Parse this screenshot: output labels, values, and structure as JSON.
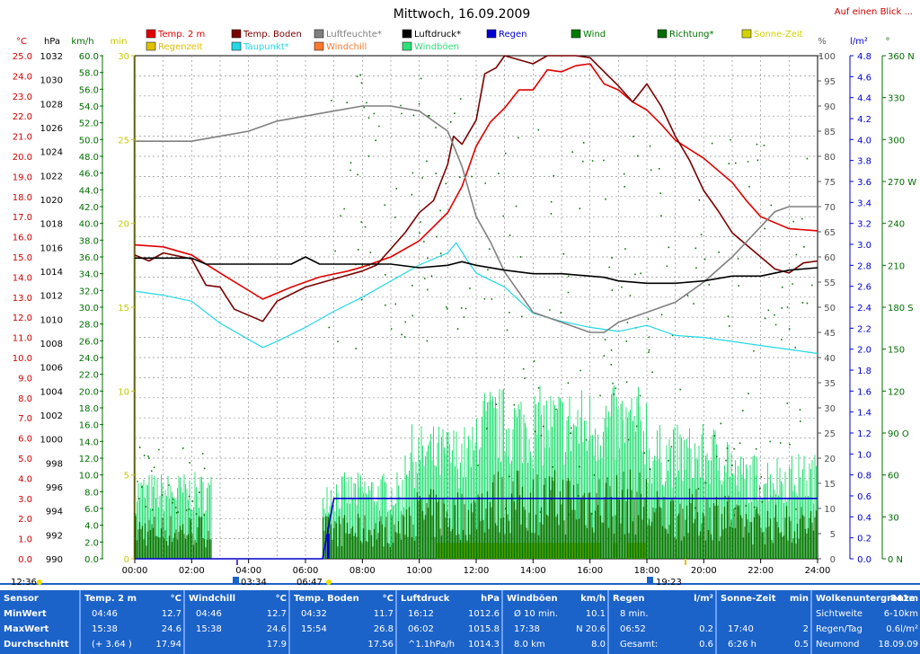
{
  "title": "Mittwoch, 16.09.2009",
  "header_link": "Auf einen Blick ...",
  "colors": {
    "temp": "#e00000",
    "boden": "#7a0000",
    "feuchte": "#808080",
    "druck": "#000000",
    "tau": "#22d8e6",
    "wind": "#007a00",
    "boeen": "#2ee07a",
    "richtung": "#006e00",
    "regen": "#0000d0",
    "sonne": "#d2d200",
    "regenzeit": "#e0c000",
    "windchill": "#ff7a30"
  },
  "legend": [
    {
      "label": "Temp. 2 m",
      "color": "#e00000"
    },
    {
      "label": "Regenzeit",
      "color": "#e0c000"
    },
    {
      "label": "Temp. Boden",
      "color": "#7a0000"
    },
    {
      "label": "Taupunkt*",
      "color": "#22d8e6"
    },
    {
      "label": "Luftfeuchte*",
      "color": "#808080"
    },
    {
      "label": "Windchill",
      "color": "#ff7a30"
    },
    {
      "label": "Luftdruck*",
      "color": "#000000"
    },
    {
      "label": "Windböen",
      "color": "#2ee07a"
    },
    {
      "label": "Regen",
      "color": "#0000d0"
    },
    {
      "label": "Wind",
      "color": "#007a00"
    },
    {
      "label": "Richtung*",
      "color": "#006e00"
    },
    {
      "label": "Sonne-Zeit",
      "color": "#d2d200"
    }
  ],
  "axis_units": {
    "temp": "°C",
    "druck": "hPa",
    "wind": "km/h",
    "sonne": "min",
    "feuchte": "%",
    "regen": "l/m²",
    "richtung": "°"
  },
  "axis_ticks": {
    "temp": [
      "25.0",
      "24.0",
      "23.0",
      "22.0",
      "21.0",
      "20.0",
      "19.0",
      "18.0",
      "17.0",
      "16.0",
      "15.0",
      "14.0",
      "13.0",
      "12.0",
      "11.0",
      "10.0",
      "9.0",
      "8.0",
      "7.0",
      "6.0",
      "5.0",
      "4.0",
      "3.0",
      "2.0",
      "1.0",
      "0.0"
    ],
    "druck": [
      "1032",
      "1030",
      "1028",
      "1026",
      "1024",
      "1022",
      "1020",
      "1018",
      "1016",
      "1014",
      "1012",
      "1010",
      "1008",
      "1006",
      "1004",
      "1002",
      "1000",
      "998",
      "996",
      "994",
      "992",
      "990"
    ],
    "wind": [
      "60.0",
      "58.0",
      "56.0",
      "54.0",
      "52.0",
      "50.0",
      "48.0",
      "46.0",
      "44.0",
      "42.0",
      "40.0",
      "38.0",
      "36.0",
      "34.0",
      "32.0",
      "30.0",
      "28.0",
      "26.0",
      "24.0",
      "22.0",
      "20.0",
      "18.0",
      "16.0",
      "14.0",
      "12.0",
      "10.0",
      "8.0",
      "6.0",
      "4.0",
      "2.0",
      "0.0"
    ],
    "sonne": [
      "30",
      "25",
      "20",
      "15",
      "10",
      "5",
      "0"
    ],
    "feuchte": [
      "100",
      "95",
      "90",
      "85",
      "80",
      "75",
      "70",
      "65",
      "60",
      "55",
      "50",
      "45",
      "40",
      "35",
      "30",
      "25",
      "20",
      "15",
      "10",
      "5",
      "0"
    ],
    "regen": [
      "4.8",
      "4.6",
      "4.4",
      "4.2",
      "4.0",
      "3.8",
      "3.6",
      "3.4",
      "3.2",
      "3.0",
      "2.8",
      "2.6",
      "2.4",
      "2.2",
      "2.0",
      "1.8",
      "1.6",
      "1.4",
      "1.2",
      "1.0",
      "0.8",
      "0.6",
      "0.4",
      "0.2",
      "0.0"
    ],
    "richtung": [
      "360 N",
      "330",
      "300",
      "270 W",
      "240",
      "210",
      "180 S",
      "150",
      "120",
      "90 O",
      "60",
      "30",
      "0 N"
    ]
  },
  "x_ticks": [
    "00:00",
    "02:00",
    "04:00",
    "06:00",
    "08:00",
    "10:00",
    "12:00",
    "14:00",
    "16:00",
    "18:00",
    "20:00",
    "22:00",
    "24:00"
  ],
  "markers": {
    "moonrise": "03:34",
    "sunrise": "06:47",
    "sunset": "19:23",
    "day_length_left": "12:36"
  },
  "chart_data": {
    "type": "line",
    "x_unit": "hour of day",
    "xlim": [
      0,
      24
    ],
    "series": [
      {
        "name": "Temp. 2 m",
        "unit": "°C",
        "points": [
          [
            0,
            15.6
          ],
          [
            1,
            15.5
          ],
          [
            2,
            15.1
          ],
          [
            3,
            14.2
          ],
          [
            4.5,
            12.9
          ],
          [
            5.5,
            13.5
          ],
          [
            6.5,
            14.0
          ],
          [
            7.5,
            14.3
          ],
          [
            8,
            14.5
          ],
          [
            9,
            15.0
          ],
          [
            10,
            15.8
          ],
          [
            10.5,
            16.5
          ],
          [
            11,
            17.2
          ],
          [
            11.5,
            18.5
          ],
          [
            12,
            20.5
          ],
          [
            12.5,
            21.7
          ],
          [
            13,
            22.4
          ],
          [
            13.5,
            23.3
          ],
          [
            14,
            23.3
          ],
          [
            14.5,
            24.3
          ],
          [
            15,
            24.2
          ],
          [
            15.5,
            24.5
          ],
          [
            16,
            24.6
          ],
          [
            16.5,
            23.6
          ],
          [
            17,
            23.3
          ],
          [
            17.5,
            22.7
          ],
          [
            18,
            22.3
          ],
          [
            18.5,
            21.6
          ],
          [
            19,
            20.8
          ],
          [
            20,
            19.9
          ],
          [
            21,
            18.7
          ],
          [
            21.5,
            17.8
          ],
          [
            22,
            17.0
          ],
          [
            23,
            16.4
          ],
          [
            24,
            16.3
          ]
        ]
      },
      {
        "name": "Temp. Boden",
        "unit": "°C",
        "points": [
          [
            0,
            15.1
          ],
          [
            0.5,
            14.8
          ],
          [
            1,
            15.2
          ],
          [
            2,
            14.9
          ],
          [
            2.5,
            13.6
          ],
          [
            3,
            13.5
          ],
          [
            3.5,
            12.4
          ],
          [
            4.5,
            11.8
          ],
          [
            5,
            12.8
          ],
          [
            6,
            13.5
          ],
          [
            7,
            13.9
          ],
          [
            8,
            14.3
          ],
          [
            8.5,
            14.6
          ],
          [
            9,
            15.4
          ],
          [
            9.5,
            16.2
          ],
          [
            10,
            17.2
          ],
          [
            10.5,
            17.8
          ],
          [
            11,
            19.6
          ],
          [
            11.2,
            21.0
          ],
          [
            11.5,
            20.6
          ],
          [
            12,
            21.8
          ],
          [
            12.3,
            24.1
          ],
          [
            12.7,
            24.4
          ],
          [
            13,
            25.0
          ],
          [
            14,
            24.6
          ],
          [
            14.5,
            25.3
          ],
          [
            15,
            25.4
          ],
          [
            15.5,
            25.5
          ],
          [
            16,
            24.9
          ],
          [
            16.5,
            24.2
          ],
          [
            17,
            23.5
          ],
          [
            17.5,
            22.7
          ],
          [
            18,
            23.6
          ],
          [
            18.5,
            22.5
          ],
          [
            19,
            21.0
          ],
          [
            19.5,
            19.8
          ],
          [
            20,
            18.3
          ],
          [
            20.5,
            17.3
          ],
          [
            21,
            16.2
          ],
          [
            21.5,
            15.6
          ],
          [
            22,
            15.0
          ],
          [
            22.5,
            14.4
          ],
          [
            23,
            14.2
          ],
          [
            23.5,
            14.7
          ],
          [
            24,
            14.8
          ]
        ]
      },
      {
        "name": "Taupunkt*",
        "unit": "°C",
        "points": [
          [
            0,
            13.3
          ],
          [
            1,
            13.1
          ],
          [
            2,
            12.8
          ],
          [
            3,
            11.7
          ],
          [
            4.5,
            10.5
          ],
          [
            5,
            10.8
          ],
          [
            6,
            11.5
          ],
          [
            7,
            12.3
          ],
          [
            8,
            13.0
          ],
          [
            9,
            13.8
          ],
          [
            10,
            14.6
          ],
          [
            11,
            15.2
          ],
          [
            11.3,
            15.7
          ],
          [
            11.7,
            14.8
          ],
          [
            12,
            14.2
          ],
          [
            13,
            13.5
          ],
          [
            14,
            12.2
          ],
          [
            15,
            11.8
          ],
          [
            16,
            11.5
          ],
          [
            17,
            11.3
          ],
          [
            18,
            11.6
          ],
          [
            19,
            11.1
          ],
          [
            20,
            11.0
          ],
          [
            21,
            10.8
          ],
          [
            22,
            10.6
          ],
          [
            23,
            10.4
          ],
          [
            24,
            10.2
          ]
        ]
      },
      {
        "name": "Luftfeuchte*",
        "unit": "%",
        "points": [
          [
            0,
            83
          ],
          [
            0.5,
            83
          ],
          [
            1,
            83
          ],
          [
            2,
            83
          ],
          [
            3,
            84
          ],
          [
            4,
            85
          ],
          [
            5,
            87
          ],
          [
            6,
            88
          ],
          [
            7,
            89
          ],
          [
            8,
            90
          ],
          [
            9,
            90
          ],
          [
            10,
            89
          ],
          [
            10.5,
            87
          ],
          [
            11,
            85
          ],
          [
            11.5,
            78
          ],
          [
            12,
            68
          ],
          [
            12.5,
            63
          ],
          [
            13,
            57
          ],
          [
            13.5,
            53
          ],
          [
            14,
            49
          ],
          [
            15,
            47
          ],
          [
            16,
            45
          ],
          [
            16.5,
            45
          ],
          [
            17,
            47
          ],
          [
            18,
            49
          ],
          [
            19,
            51
          ],
          [
            20,
            55
          ],
          [
            21,
            60
          ],
          [
            22,
            66
          ],
          [
            22.5,
            69
          ],
          [
            23,
            70
          ],
          [
            24,
            70
          ]
        ]
      },
      {
        "name": "Luftdruck*",
        "unit": "hPa",
        "points": [
          [
            0,
            1015.1
          ],
          [
            1,
            1015.1
          ],
          [
            2,
            1015.1
          ],
          [
            2.5,
            1014.6
          ],
          [
            3,
            1014.6
          ],
          [
            4,
            1014.6
          ],
          [
            5,
            1014.6
          ],
          [
            5.5,
            1014.6
          ],
          [
            6,
            1015.2
          ],
          [
            6.5,
            1014.6
          ],
          [
            7,
            1014.6
          ],
          [
            8,
            1014.6
          ],
          [
            9,
            1014.6
          ],
          [
            10,
            1014.3
          ],
          [
            11,
            1014.5
          ],
          [
            11.5,
            1014.8
          ],
          [
            12,
            1014.5
          ],
          [
            13,
            1014.1
          ],
          [
            14,
            1013.8
          ],
          [
            15,
            1013.8
          ],
          [
            16,
            1013.6
          ],
          [
            16.5,
            1013.5
          ],
          [
            17,
            1013.2
          ],
          [
            18,
            1013.0
          ],
          [
            19,
            1013.0
          ],
          [
            20,
            1013.2
          ],
          [
            21,
            1013.6
          ],
          [
            22,
            1013.6
          ],
          [
            23,
            1014.1
          ],
          [
            24,
            1014.3
          ]
        ]
      },
      {
        "name": "Regen",
        "unit": "l/m²",
        "points": [
          [
            0,
            0
          ],
          [
            6.6,
            0
          ],
          [
            6.8,
            0.3
          ],
          [
            7,
            0.6
          ],
          [
            8,
            0.6
          ],
          [
            12,
            0.6
          ],
          [
            16,
            0.6
          ],
          [
            20,
            0.6
          ],
          [
            24,
            0.6
          ]
        ]
      },
      {
        "name": "Sonne-Zeit",
        "unit": "min",
        "intervals": [
          [
            10.6,
            16.4
          ],
          [
            16.8,
            17.0
          ],
          [
            17.3,
            18.0
          ]
        ],
        "level": 1.9
      }
    ]
  },
  "stats": {
    "row_labels": {
      "sensor": "Sensor",
      "min": "MinWert",
      "max": "MaxWert",
      "avg": "Durchschnitt"
    },
    "columns": [
      {
        "header": "Temp. 2 m",
        "unit": "°C",
        "min": [
          "04:46",
          "12.7"
        ],
        "max": [
          "15:38",
          "24.6"
        ],
        "avg": [
          "(+ 3.64 )",
          "17.94"
        ]
      },
      {
        "header": "Windchill",
        "unit": "°C",
        "min": [
          "04:46",
          "12.7"
        ],
        "max": [
          "15:38",
          "24.6"
        ],
        "avg": [
          "",
          "17.9"
        ]
      },
      {
        "header": "Temp. Boden",
        "unit": "°C",
        "min": [
          "04:32",
          "11.7"
        ],
        "max": [
          "15:54",
          "26.8"
        ],
        "avg": [
          "",
          "17.56"
        ]
      },
      {
        "header": "Luftdruck",
        "unit": "hPa",
        "min": [
          "16:12",
          "1012.6"
        ],
        "max": [
          "06:02",
          "1015.8"
        ],
        "avg": [
          "^1.1hPa/h",
          "1014.3"
        ]
      },
      {
        "header": "Windböen",
        "unit": "km/h",
        "min": [
          "Ø 10 min.",
          "10.1"
        ],
        "max": [
          "17:38",
          "N 20.6"
        ],
        "avg": [
          "8.0 km",
          "8.0"
        ]
      },
      {
        "header": "Regen",
        "unit": "l/m²",
        "min": [
          "8 min.",
          ""
        ],
        "max": [
          "06:52",
          "0.2"
        ],
        "avg": [
          "Gesamt:",
          "0.6"
        ]
      },
      {
        "header": "Sonne-Zeit",
        "unit": "min",
        "min": [
          "",
          ""
        ],
        "max": [
          "17:40",
          "2"
        ],
        "avg": [
          "6:26 h",
          "0.5"
        ]
      },
      {
        "header": "Wolkenuntergrenze",
        "unit": "841m",
        "min": [
          "Sichtweite",
          "6-10km"
        ],
        "max": [
          "Regen/Tag",
          "0.6l/m²"
        ],
        "avg": [
          "Neumond",
          "18.09.09"
        ]
      }
    ]
  }
}
